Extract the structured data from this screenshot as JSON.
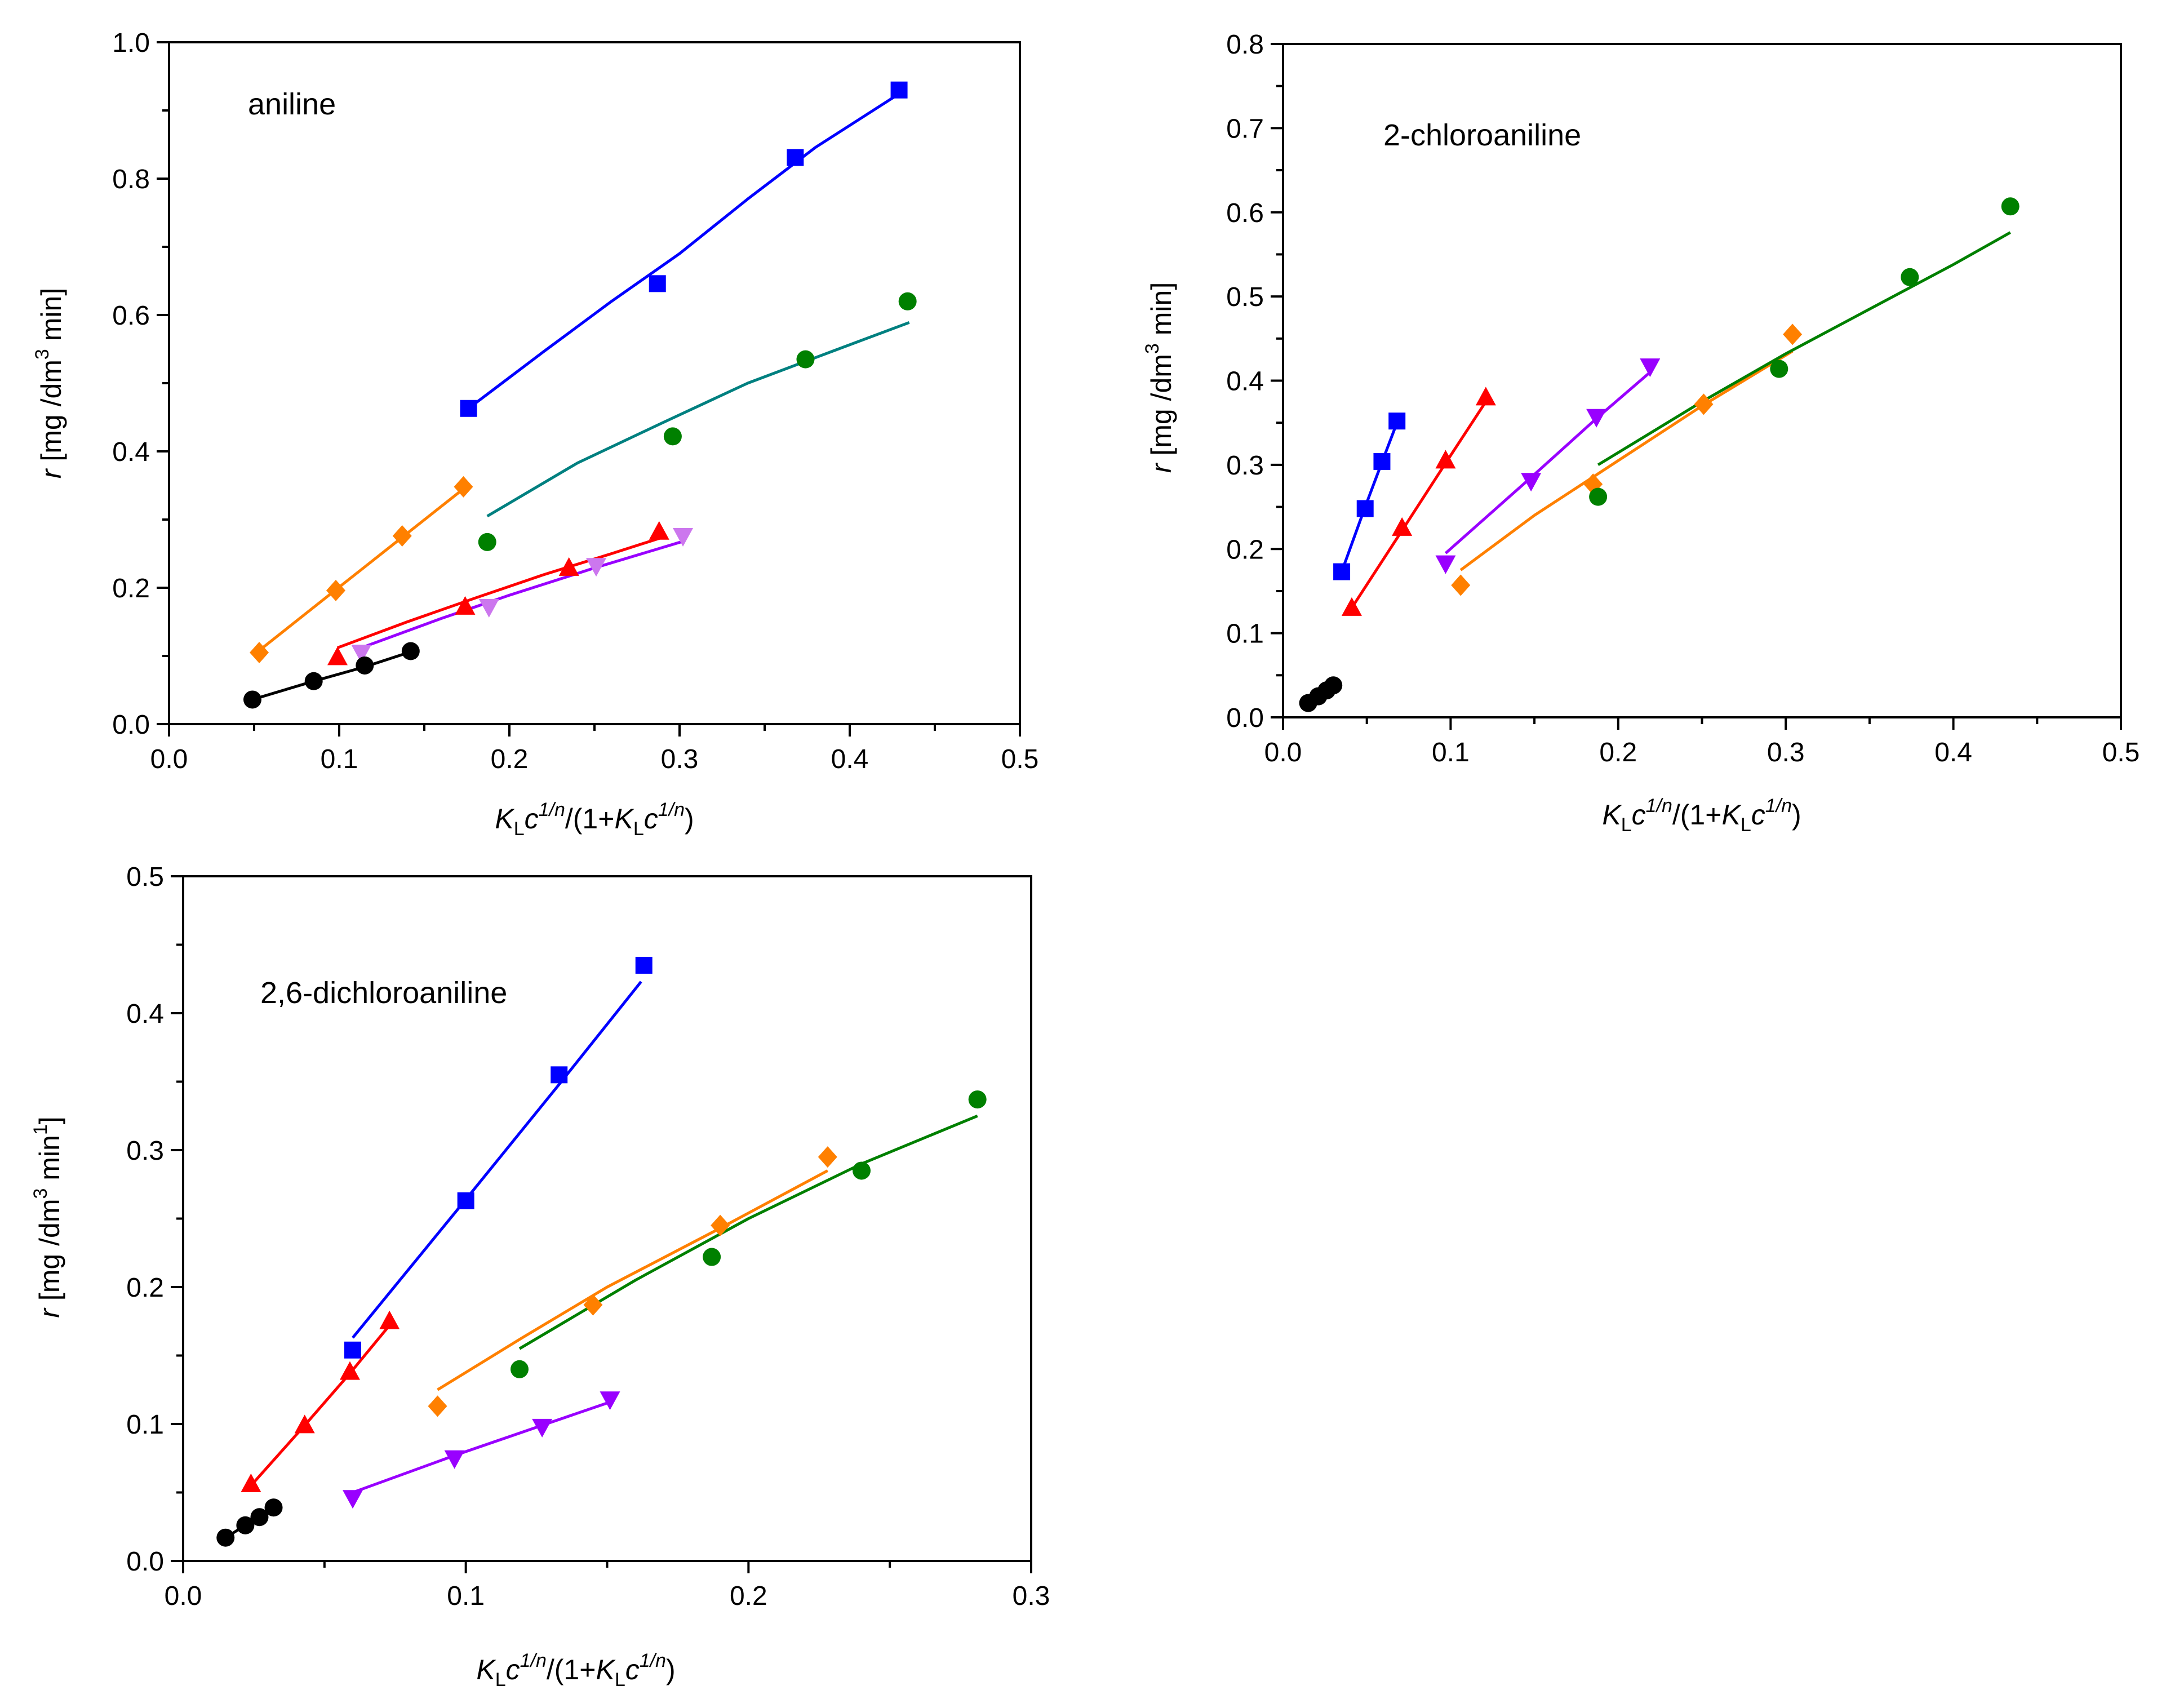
{
  "chart_data": [
    {
      "id": "aniline",
      "type": "scatter",
      "annotation": "aniline",
      "xlim": [
        0.0,
        0.5
      ],
      "ylim": [
        0.0,
        1.0
      ],
      "xticks": [
        "0.0",
        "0.1",
        "0.2",
        "0.3",
        "0.4",
        "0.5"
      ],
      "yticks": [
        "0.0",
        "0.2",
        "0.4",
        "0.6",
        "0.8",
        "1.0"
      ],
      "xlabel": {
        "K": "K",
        "L": "L",
        "c": "c",
        "exp": "1/n",
        "mid": "/(1+",
        "K2": "K",
        "L2": "L",
        "c2": "c",
        "exp2": "1/n",
        "end": ")"
      },
      "ylabel": {
        "r": "r",
        "pre": "[mg /dm",
        "exp": "3",
        "post": " min]"
      },
      "series": [
        {
          "name": "squares",
          "marker": "square",
          "color": "#0000ff",
          "line_color": "#0000ff",
          "x": [
            0.176,
            0.287,
            0.368,
            0.429
          ],
          "y": [
            0.463,
            0.646,
            0.831,
            0.93
          ],
          "fit": [
            [
              0.176,
              0.463
            ],
            [
              0.22,
              0.546
            ],
            [
              0.26,
              0.62
            ],
            [
              0.3,
              0.69
            ],
            [
              0.34,
              0.77
            ],
            [
              0.38,
              0.846
            ],
            [
              0.43,
              0.926
            ]
          ]
        },
        {
          "name": "circles-green",
          "marker": "circle",
          "color": "#008000",
          "line_color": "#008080",
          "x": [
            0.187,
            0.296,
            0.374,
            0.434
          ],
          "y": [
            0.267,
            0.422,
            0.535,
            0.62
          ],
          "fit": [
            [
              0.187,
              0.305
            ],
            [
              0.24,
              0.383
            ],
            [
              0.29,
              0.442
            ],
            [
              0.34,
              0.5
            ],
            [
              0.39,
              0.547
            ],
            [
              0.435,
              0.589
            ]
          ]
        },
        {
          "name": "diamonds",
          "marker": "diamond",
          "color": "#ff8000",
          "line_color": "#ff8000",
          "x": [
            0.053,
            0.098,
            0.137,
            0.173
          ],
          "y": [
            0.105,
            0.196,
            0.276,
            0.348
          ],
          "fit": [
            [
              0.053,
              0.108
            ],
            [
              0.098,
              0.197
            ],
            [
              0.137,
              0.274
            ],
            [
              0.173,
              0.345
            ]
          ]
        },
        {
          "name": "triangles-up",
          "marker": "triangle-up",
          "color": "#ff0000",
          "line_color": "#ff0000",
          "x": [
            0.099,
            0.174,
            0.235,
            0.288
          ],
          "y": [
            0.098,
            0.172,
            0.229,
            0.282
          ],
          "fit": [
            [
              0.099,
              0.112
            ],
            [
              0.14,
              0.15
            ],
            [
              0.18,
              0.185
            ],
            [
              0.22,
              0.219
            ],
            [
              0.26,
              0.25
            ],
            [
              0.29,
              0.274
            ]
          ]
        },
        {
          "name": "triangles-down",
          "marker": "triangle-down",
          "color": "#cc77ee",
          "line_color": "#9900ff",
          "x": [
            0.113,
            0.188,
            0.251,
            0.302
          ],
          "y": [
            0.105,
            0.172,
            0.232,
            0.276
          ],
          "fit": [
            [
              0.113,
              0.112
            ],
            [
              0.16,
              0.155
            ],
            [
              0.2,
              0.189
            ],
            [
              0.25,
              0.229
            ],
            [
              0.302,
              0.268
            ]
          ]
        },
        {
          "name": "circles-black",
          "marker": "circle",
          "color": "#000000",
          "line_color": "#000000",
          "x": [
            0.049,
            0.085,
            0.115,
            0.142
          ],
          "y": [
            0.036,
            0.063,
            0.086,
            0.107
          ],
          "fit": [
            [
              0.049,
              0.036
            ],
            [
              0.085,
              0.063
            ],
            [
              0.115,
              0.084
            ],
            [
              0.142,
              0.106
            ]
          ]
        }
      ]
    },
    {
      "id": "chloroaniline",
      "type": "scatter",
      "annotation": "2-chloroaniline",
      "xlim": [
        0.0,
        0.5
      ],
      "ylim": [
        0.0,
        0.8
      ],
      "xticks": [
        "0.0",
        "0.1",
        "0.2",
        "0.3",
        "0.4",
        "0.5"
      ],
      "yticks": [
        "0.0",
        "0.1",
        "0.2",
        "0.3",
        "0.4",
        "0.5",
        "0.6",
        "0.7",
        "0.8"
      ],
      "xlabel": {
        "K": "K",
        "L": "L",
        "c": "c",
        "exp": "1/n",
        "mid": "/(1+",
        "K2": "K",
        "L2": "L",
        "c2": "c",
        "exp2": "1/n",
        "end": ")"
      },
      "ylabel": {
        "r": "r",
        "pre": "[mg /dm",
        "exp": "3",
        "post": " min]"
      },
      "series": [
        {
          "name": "squares",
          "marker": "square",
          "color": "#0000ff",
          "line_color": "#0000ff",
          "x": [
            0.035,
            0.049,
            0.059,
            0.068
          ],
          "y": [
            0.173,
            0.248,
            0.304,
            0.352
          ],
          "fit": [
            [
              0.035,
              0.173
            ],
            [
              0.049,
              0.25
            ],
            [
              0.059,
              0.303
            ],
            [
              0.068,
              0.35
            ]
          ]
        },
        {
          "name": "triangles-up",
          "marker": "triangle-up",
          "color": "#ff0000",
          "line_color": "#ff0000",
          "x": [
            0.041,
            0.071,
            0.097,
            0.121
          ],
          "y": [
            0.13,
            0.225,
            0.305,
            0.38
          ],
          "fit": [
            [
              0.041,
              0.13
            ],
            [
              0.071,
              0.222
            ],
            [
              0.097,
              0.302
            ],
            [
              0.121,
              0.375
            ]
          ]
        },
        {
          "name": "triangles-down",
          "marker": "triangle-down",
          "color": "#9900ff",
          "line_color": "#9900ff",
          "x": [
            0.097,
            0.148,
            0.187,
            0.219
          ],
          "y": [
            0.183,
            0.281,
            0.357,
            0.417
          ],
          "fit": [
            [
              0.097,
              0.195
            ],
            [
              0.148,
              0.285
            ],
            [
              0.187,
              0.355
            ],
            [
              0.219,
              0.41
            ]
          ]
        },
        {
          "name": "diamonds",
          "marker": "diamond",
          "color": "#ff8000",
          "line_color": "#ff8000",
          "x": [
            0.106,
            0.185,
            0.251,
            0.304
          ],
          "y": [
            0.157,
            0.277,
            0.372,
            0.455
          ],
          "fit": [
            [
              0.106,
              0.175
            ],
            [
              0.15,
              0.24
            ],
            [
              0.2,
              0.305
            ],
            [
              0.25,
              0.37
            ],
            [
              0.304,
              0.435
            ]
          ]
        },
        {
          "name": "circles-green",
          "marker": "circle",
          "color": "#008000",
          "line_color": "#008000",
          "x": [
            0.188,
            0.296,
            0.374,
            0.434
          ],
          "y": [
            0.262,
            0.414,
            0.523,
            0.607
          ],
          "fit": [
            [
              0.188,
              0.3
            ],
            [
              0.25,
              0.375
            ],
            [
              0.3,
              0.432
            ],
            [
              0.35,
              0.485
            ],
            [
              0.4,
              0.538
            ],
            [
              0.434,
              0.576
            ]
          ]
        },
        {
          "name": "circles-black",
          "marker": "circle",
          "color": "#000000",
          "line_color": "#000000",
          "x": [
            0.015,
            0.021,
            0.026,
            0.03
          ],
          "y": [
            0.017,
            0.025,
            0.032,
            0.038
          ],
          "fit": []
        }
      ]
    },
    {
      "id": "dichloroaniline",
      "type": "scatter",
      "annotation": "2,6-dichloroaniline",
      "xlim": [
        0.0,
        0.3
      ],
      "ylim": [
        0.0,
        0.5
      ],
      "xticks": [
        "0.0",
        "0.1",
        "0.2",
        "0.3"
      ],
      "yticks": [
        "0.0",
        "0.1",
        "0.2",
        "0.3",
        "0.4",
        "0.5"
      ],
      "xlabel": {
        "K": "K",
        "L": "L",
        "c": "c",
        "exp": "1/n",
        "mid": "/(1+",
        "K2": "K",
        "L2": "L",
        "c2": "c",
        "exp2": "1/n",
        "end": ")"
      },
      "ylabel": {
        "r": "r",
        "pre": "[mg /dm",
        "exp": "3",
        "post": " min",
        "exp2": "1",
        "end": "]"
      },
      "series": [
        {
          "name": "squares",
          "marker": "square",
          "color": "#0000ff",
          "line_color": "#0000ff",
          "x": [
            0.06,
            0.1,
            0.133,
            0.163
          ],
          "y": [
            0.154,
            0.263,
            0.355,
            0.435
          ],
          "fit": [
            [
              0.06,
              0.163
            ],
            [
              0.1,
              0.264
            ],
            [
              0.133,
              0.348
            ],
            [
              0.162,
              0.423
            ]
          ]
        },
        {
          "name": "triangles-up",
          "marker": "triangle-up",
          "color": "#ff0000",
          "line_color": "#ff0000",
          "x": [
            0.024,
            0.043,
            0.059,
            0.073
          ],
          "y": [
            0.056,
            0.099,
            0.138,
            0.175
          ],
          "fit": [
            [
              0.024,
              0.055
            ],
            [
              0.043,
              0.099
            ],
            [
              0.059,
              0.137
            ],
            [
              0.073,
              0.172
            ]
          ]
        },
        {
          "name": "triangles-down",
          "marker": "triangle-down",
          "color": "#9900ff",
          "line_color": "#9900ff",
          "x": [
            0.06,
            0.096,
            0.127,
            0.151
          ],
          "y": [
            0.046,
            0.075,
            0.098,
            0.118
          ],
          "fit": [
            [
              0.06,
              0.05
            ],
            [
              0.096,
              0.077
            ],
            [
              0.127,
              0.099
            ],
            [
              0.151,
              0.116
            ]
          ]
        },
        {
          "name": "diamonds",
          "marker": "diamond",
          "color": "#ff8000",
          "line_color": "#ff8000",
          "x": [
            0.09,
            0.145,
            0.19,
            0.228
          ],
          "y": [
            0.113,
            0.187,
            0.245,
            0.295
          ],
          "fit": [
            [
              0.09,
              0.125
            ],
            [
              0.12,
              0.163
            ],
            [
              0.15,
              0.2
            ],
            [
              0.19,
              0.243
            ],
            [
              0.228,
              0.285
            ]
          ]
        },
        {
          "name": "circles-green",
          "marker": "circle",
          "color": "#008000",
          "line_color": "#008000",
          "x": [
            0.119,
            0.187,
            0.24,
            0.281
          ],
          "y": [
            0.14,
            0.222,
            0.285,
            0.337
          ],
          "fit": [
            [
              0.119,
              0.155
            ],
            [
              0.16,
              0.205
            ],
            [
              0.2,
              0.25
            ],
            [
              0.24,
              0.29
            ],
            [
              0.281,
              0.325
            ]
          ]
        },
        {
          "name": "circles-black",
          "marker": "circle",
          "color": "#000000",
          "line_color": "#000000",
          "x": [
            0.015,
            0.022,
            0.027,
            0.032
          ],
          "y": [
            0.017,
            0.026,
            0.032,
            0.039
          ],
          "fit": []
        }
      ]
    }
  ]
}
